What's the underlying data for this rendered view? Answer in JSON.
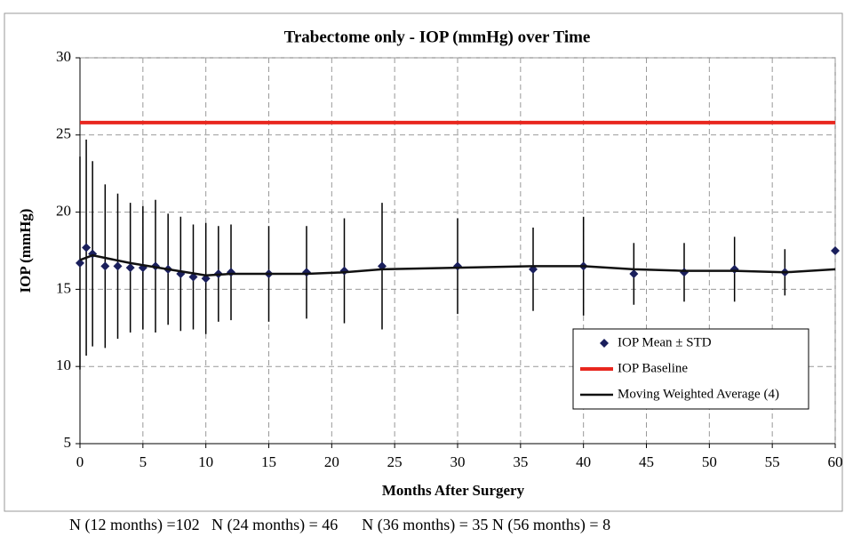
{
  "chart_data": {
    "type": "errorbar",
    "title": "Trabectome only - IOP (mmHg) over Time",
    "x_label": "Months After Surgery",
    "y_label": "IOP (mmHg)",
    "footnote": "N (12 months) =102   N (24 months) = 46      N (36 months) = 35 N (56 months) = 8",
    "xlim": [
      0,
      60
    ],
    "xticks": [
      0,
      5,
      10,
      15,
      20,
      25,
      30,
      35,
      40,
      45,
      50,
      55,
      60
    ],
    "ylim": [
      5,
      30
    ],
    "yticks": [
      5,
      10,
      15,
      20,
      25,
      30
    ],
    "grid": true,
    "legend": "lower right",
    "series": [
      {
        "name": "IOP Mean ± STD",
        "kind": "marker",
        "color": "#1a1f5c",
        "x": [
          0,
          0.5,
          1,
          2,
          3,
          4,
          5,
          6,
          7,
          8,
          9,
          10,
          11,
          12,
          15,
          18,
          21,
          24,
          30,
          36,
          40,
          44,
          48,
          52,
          56,
          60
        ],
        "values": [
          16.7,
          17.7,
          17.3,
          16.5,
          16.5,
          16.4,
          16.4,
          16.5,
          16.3,
          16.0,
          15.8,
          15.7,
          16.0,
          16.1,
          16.0,
          16.1,
          16.2,
          16.5,
          16.5,
          16.3,
          16.5,
          16.0,
          16.1,
          16.3,
          16.1,
          17.5
        ],
        "errors": [
          6.9,
          7.0,
          6.0,
          5.3,
          4.7,
          4.2,
          4.0,
          4.3,
          3.6,
          3.7,
          3.4,
          3.6,
          3.1,
          3.1,
          3.1,
          3.0,
          3.4,
          4.1,
          3.1,
          2.7,
          3.2,
          2.0,
          1.9,
          2.1,
          1.5,
          null
        ]
      },
      {
        "name": "IOP Baseline",
        "kind": "hline",
        "color": "#e8261e",
        "values": [
          25.8
        ]
      },
      {
        "name": "Moving Weighted Average (4)",
        "kind": "line",
        "color": "#111111",
        "x": [
          0,
          1,
          4,
          7,
          10,
          12,
          15,
          18,
          21,
          24,
          30,
          36,
          40,
          44,
          48,
          52,
          56,
          60
        ],
        "values": [
          16.9,
          17.2,
          16.7,
          16.3,
          15.9,
          16.0,
          16.0,
          16.0,
          16.1,
          16.3,
          16.4,
          16.5,
          16.5,
          16.3,
          16.2,
          16.2,
          16.1,
          16.3
        ]
      }
    ]
  }
}
